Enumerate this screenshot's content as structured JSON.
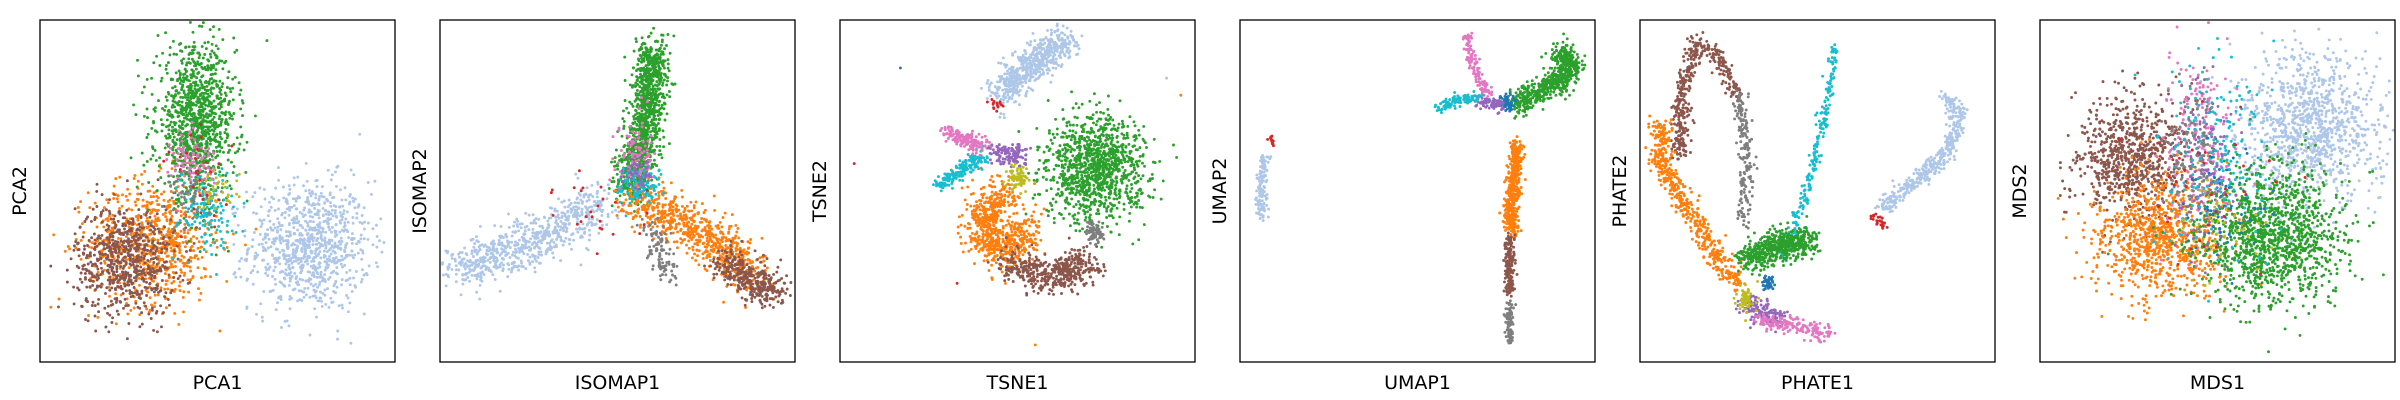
{
  "colors": {
    "light_blue": "#aec7e8",
    "orange": "#ff7f0e",
    "green": "#2ca02c",
    "red": "#d62728",
    "purple": "#9467bd",
    "brown": "#8c564b",
    "pink": "#e377c2",
    "gray": "#7f7f7f",
    "olive": "#bcbd22",
    "cyan": "#17becf",
    "blue": "#1f77b4"
  },
  "chart_data": [
    {
      "type": "scatter",
      "xlabel": "PCA1",
      "ylabel": "PCA2",
      "xlim": [
        0,
        1
      ],
      "ylim": [
        0,
        1
      ],
      "ticks_shown": false,
      "grid": false,
      "clusters": [
        {
          "color": "light_blue",
          "kind": "blob",
          "cx": 0.76,
          "cy": 0.34,
          "sx": 0.085,
          "sy": 0.095,
          "n": 900
        },
        {
          "color": "orange",
          "kind": "blob",
          "cx": 0.32,
          "cy": 0.35,
          "sx": 0.09,
          "sy": 0.09,
          "n": 700
        },
        {
          "color": "brown",
          "kind": "blob",
          "cx": 0.24,
          "cy": 0.3,
          "sx": 0.07,
          "sy": 0.08,
          "n": 700
        },
        {
          "color": "green",
          "kind": "blob",
          "cx": 0.44,
          "cy": 0.7,
          "sx": 0.055,
          "sy": 0.11,
          "n": 1100
        },
        {
          "color": "cyan",
          "kind": "blob",
          "cx": 0.47,
          "cy": 0.45,
          "sx": 0.04,
          "sy": 0.06,
          "n": 150
        },
        {
          "color": "pink",
          "kind": "blob",
          "cx": 0.43,
          "cy": 0.58,
          "sx": 0.03,
          "sy": 0.05,
          "n": 100
        },
        {
          "color": "gray",
          "kind": "blob",
          "cx": 0.42,
          "cy": 0.48,
          "sx": 0.03,
          "sy": 0.05,
          "n": 60
        },
        {
          "color": "olive",
          "kind": "blob",
          "cx": 0.5,
          "cy": 0.5,
          "sx": 0.03,
          "sy": 0.03,
          "n": 40
        },
        {
          "color": "red",
          "kind": "blob",
          "cx": 0.45,
          "cy": 0.52,
          "sx": 0.05,
          "sy": 0.08,
          "n": 30
        }
      ]
    },
    {
      "type": "scatter",
      "xlabel": "ISOMAP1",
      "ylabel": "ISOMAP2",
      "xlim": [
        0,
        1
      ],
      "ylim": [
        0,
        1
      ],
      "ticks_shown": false,
      "grid": false,
      "clusters": [
        {
          "color": "light_blue",
          "kind": "path",
          "points": [
            [
              0.05,
              0.27
            ],
            [
              0.2,
              0.33
            ],
            [
              0.33,
              0.38
            ],
            [
              0.45,
              0.48
            ]
          ],
          "spread": 0.035,
          "n": 700
        },
        {
          "color": "green",
          "kind": "path",
          "points": [
            [
              0.6,
              0.92
            ],
            [
              0.59,
              0.75
            ],
            [
              0.56,
              0.6
            ],
            [
              0.53,
              0.5
            ]
          ],
          "spread": 0.025,
          "n": 1100
        },
        {
          "color": "orange",
          "kind": "path",
          "points": [
            [
              0.55,
              0.48
            ],
            [
              0.67,
              0.42
            ],
            [
              0.8,
              0.33
            ],
            [
              0.88,
              0.25
            ]
          ],
          "spread": 0.035,
          "n": 700
        },
        {
          "color": "brown",
          "kind": "path",
          "points": [
            [
              0.8,
              0.3
            ],
            [
              0.88,
              0.24
            ],
            [
              0.95,
              0.2
            ]
          ],
          "spread": 0.025,
          "n": 350
        },
        {
          "color": "gray",
          "kind": "path",
          "points": [
            [
              0.6,
              0.4
            ],
            [
              0.64,
              0.25
            ]
          ],
          "spread": 0.02,
          "n": 100
        },
        {
          "color": "cyan",
          "kind": "blob",
          "cx": 0.56,
          "cy": 0.52,
          "sx": 0.03,
          "sy": 0.03,
          "n": 120
        },
        {
          "color": "pink",
          "kind": "blob",
          "cx": 0.55,
          "cy": 0.62,
          "sx": 0.025,
          "sy": 0.05,
          "n": 90
        },
        {
          "color": "purple",
          "kind": "blob",
          "cx": 0.55,
          "cy": 0.55,
          "sx": 0.025,
          "sy": 0.025,
          "n": 50
        },
        {
          "color": "red",
          "kind": "blob",
          "cx": 0.45,
          "cy": 0.45,
          "sx": 0.07,
          "sy": 0.06,
          "n": 25
        }
      ]
    },
    {
      "type": "scatter",
      "xlabel": "TSNE1",
      "ylabel": "TSNE2",
      "xlim": [
        0,
        1
      ],
      "ylim": [
        0,
        1
      ],
      "ticks_shown": false,
      "grid": false,
      "clusters": [
        {
          "color": "light_blue",
          "kind": "path",
          "points": [
            [
              0.45,
              0.78
            ],
            [
              0.52,
              0.86
            ],
            [
              0.6,
              0.92
            ],
            [
              0.64,
              0.94
            ]
          ],
          "spread": 0.025,
          "n": 600
        },
        {
          "color": "green",
          "kind": "blob",
          "cx": 0.72,
          "cy": 0.57,
          "sx": 0.07,
          "sy": 0.075,
          "n": 1100
        },
        {
          "color": "orange",
          "kind": "path",
          "points": [
            [
              0.47,
              0.5
            ],
            [
              0.4,
              0.43
            ],
            [
              0.41,
              0.35
            ],
            [
              0.48,
              0.32
            ],
            [
              0.53,
              0.4
            ]
          ],
          "spread": 0.03,
          "n": 650
        },
        {
          "color": "brown",
          "kind": "path",
          "points": [
            [
              0.47,
              0.29
            ],
            [
              0.56,
              0.25
            ],
            [
              0.66,
              0.26
            ],
            [
              0.7,
              0.3
            ]
          ],
          "spread": 0.025,
          "n": 450
        },
        {
          "color": "gray",
          "kind": "path",
          "points": [
            [
              0.72,
              0.36
            ],
            [
              0.71,
              0.4
            ]
          ],
          "spread": 0.012,
          "n": 70
        },
        {
          "color": "cyan",
          "kind": "path",
          "points": [
            [
              0.28,
              0.52
            ],
            [
              0.34,
              0.56
            ],
            [
              0.4,
              0.6
            ]
          ],
          "spread": 0.012,
          "n": 180
        },
        {
          "color": "pink",
          "kind": "path",
          "points": [
            [
              0.3,
              0.67
            ],
            [
              0.37,
              0.64
            ],
            [
              0.42,
              0.63
            ]
          ],
          "spread": 0.012,
          "n": 160
        },
        {
          "color": "purple",
          "kind": "blob",
          "cx": 0.48,
          "cy": 0.61,
          "sx": 0.025,
          "sy": 0.015,
          "n": 120
        },
        {
          "color": "olive",
          "kind": "blob",
          "cx": 0.5,
          "cy": 0.54,
          "sx": 0.015,
          "sy": 0.02,
          "n": 70
        },
        {
          "color": "red",
          "kind": "blob",
          "cx": 0.44,
          "cy": 0.75,
          "sx": 0.01,
          "sy": 0.01,
          "n": 15
        }
      ],
      "outliers": [
        {
          "color": "blue",
          "x": 0.17,
          "y": 0.86
        },
        {
          "color": "red",
          "x": 0.04,
          "y": 0.58
        },
        {
          "color": "orange",
          "x": 0.96,
          "y": 0.78
        },
        {
          "color": "orange",
          "x": 0.55,
          "y": 0.05
        },
        {
          "color": "light_blue",
          "x": 0.92,
          "y": 0.83
        },
        {
          "color": "red",
          "x": 0.33,
          "y": 0.23
        }
      ]
    },
    {
      "type": "scatter",
      "xlabel": "UMAP1",
      "ylabel": "UMAP2",
      "xlim": [
        0,
        1
      ],
      "ylim": [
        0,
        1
      ],
      "ticks_shown": false,
      "grid": false,
      "clusters": [
        {
          "color": "light_blue",
          "kind": "path",
          "points": [
            [
              0.06,
              0.42
            ],
            [
              0.06,
              0.52
            ],
            [
              0.07,
              0.6
            ]
          ],
          "spread": 0.008,
          "n": 130
        },
        {
          "color": "orange",
          "kind": "path",
          "points": [
            [
              0.78,
              0.64
            ],
            [
              0.77,
              0.52
            ],
            [
              0.76,
              0.42
            ],
            [
              0.77,
              0.38
            ]
          ],
          "spread": 0.01,
          "n": 450
        },
        {
          "color": "brown",
          "kind": "path",
          "points": [
            [
              0.76,
              0.37
            ],
            [
              0.76,
              0.27
            ],
            [
              0.76,
              0.2
            ]
          ],
          "spread": 0.007,
          "n": 180
        },
        {
          "color": "gray",
          "kind": "path",
          "points": [
            [
              0.76,
              0.18
            ],
            [
              0.76,
              0.06
            ]
          ],
          "spread": 0.006,
          "n": 90
        },
        {
          "color": "green",
          "kind": "path",
          "points": [
            [
              0.78,
              0.75
            ],
            [
              0.85,
              0.8
            ],
            [
              0.92,
              0.83
            ],
            [
              0.93,
              0.88
            ],
            [
              0.9,
              0.91
            ]
          ],
          "spread": 0.018,
          "n": 600
        },
        {
          "color": "blue",
          "kind": "blob",
          "cx": 0.75,
          "cy": 0.76,
          "sx": 0.012,
          "sy": 0.012,
          "n": 60
        },
        {
          "color": "purple",
          "kind": "path",
          "points": [
            [
              0.66,
              0.77
            ],
            [
              0.74,
              0.75
            ]
          ],
          "spread": 0.01,
          "n": 90
        },
        {
          "color": "pink",
          "kind": "path",
          "points": [
            [
              0.64,
              0.96
            ],
            [
              0.66,
              0.85
            ],
            [
              0.7,
              0.78
            ]
          ],
          "spread": 0.008,
          "n": 120
        },
        {
          "color": "cyan",
          "kind": "path",
          "points": [
            [
              0.56,
              0.74
            ],
            [
              0.62,
              0.77
            ],
            [
              0.67,
              0.77
            ]
          ],
          "spread": 0.008,
          "n": 120
        },
        {
          "color": "red",
          "kind": "blob",
          "cx": 0.09,
          "cy": 0.65,
          "sx": 0.006,
          "sy": 0.006,
          "n": 12
        }
      ]
    },
    {
      "type": "scatter",
      "xlabel": "PHATE1",
      "ylabel": "PHATE2",
      "xlim": [
        0,
        1
      ],
      "ylim": [
        0,
        1
      ],
      "ticks_shown": false,
      "grid": false,
      "clusters": [
        {
          "color": "brown",
          "kind": "path",
          "points": [
            [
              0.11,
              0.6
            ],
            [
              0.12,
              0.8
            ],
            [
              0.16,
              0.93
            ],
            [
              0.22,
              0.9
            ],
            [
              0.27,
              0.78
            ]
          ],
          "spread": 0.012,
          "n": 400
        },
        {
          "color": "gray",
          "kind": "path",
          "points": [
            [
              0.28,
              0.78
            ],
            [
              0.3,
              0.6
            ],
            [
              0.29,
              0.4
            ]
          ],
          "spread": 0.01,
          "n": 180
        },
        {
          "color": "orange",
          "kind": "path",
          "points": [
            [
              0.06,
              0.7
            ],
            [
              0.06,
              0.58
            ],
            [
              0.15,
              0.42
            ],
            [
              0.22,
              0.3
            ],
            [
              0.28,
              0.22
            ]
          ],
          "spread": 0.015,
          "n": 500
        },
        {
          "color": "cyan",
          "kind": "path",
          "points": [
            [
              0.4,
              0.3
            ],
            [
              0.47,
              0.5
            ],
            [
              0.52,
              0.72
            ],
            [
              0.55,
              0.92
            ]
          ],
          "spread": 0.008,
          "n": 230
        },
        {
          "color": "light_blue",
          "kind": "path",
          "points": [
            [
              0.68,
              0.45
            ],
            [
              0.8,
              0.55
            ],
            [
              0.87,
              0.62
            ],
            [
              0.9,
              0.73
            ],
            [
              0.86,
              0.77
            ]
          ],
          "spread": 0.012,
          "n": 400
        },
        {
          "color": "green",
          "kind": "path",
          "points": [
            [
              0.3,
              0.3
            ],
            [
              0.38,
              0.34
            ],
            [
              0.48,
              0.35
            ]
          ],
          "spread": 0.022,
          "n": 550
        },
        {
          "color": "purple",
          "kind": "path",
          "points": [
            [
              0.3,
              0.17
            ],
            [
              0.4,
              0.12
            ]
          ],
          "spread": 0.018,
          "n": 130
        },
        {
          "color": "pink",
          "kind": "path",
          "points": [
            [
              0.34,
              0.12
            ],
            [
              0.45,
              0.1
            ],
            [
              0.53,
              0.08
            ]
          ],
          "spread": 0.012,
          "n": 180
        },
        {
          "color": "olive",
          "kind": "blob",
          "cx": 0.3,
          "cy": 0.18,
          "sx": 0.015,
          "sy": 0.02,
          "n": 70
        },
        {
          "color": "blue",
          "kind": "blob",
          "cx": 0.36,
          "cy": 0.23,
          "sx": 0.01,
          "sy": 0.01,
          "n": 40
        },
        {
          "color": "red",
          "kind": "path",
          "points": [
            [
              0.65,
              0.43
            ],
            [
              0.69,
              0.4
            ]
          ],
          "spread": 0.008,
          "n": 25
        }
      ]
    },
    {
      "type": "scatter",
      "xlabel": "MDS1",
      "ylabel": "MDS2",
      "xlim": [
        0,
        1
      ],
      "ylim": [
        0,
        1
      ],
      "ticks_shown": false,
      "grid": false,
      "clusters": [
        {
          "color": "light_blue",
          "kind": "blob",
          "cx": 0.76,
          "cy": 0.68,
          "sx": 0.1,
          "sy": 0.11,
          "n": 1100
        },
        {
          "color": "brown",
          "kind": "blob",
          "cx": 0.26,
          "cy": 0.6,
          "sx": 0.075,
          "sy": 0.09,
          "n": 800
        },
        {
          "color": "orange",
          "kind": "blob",
          "cx": 0.34,
          "cy": 0.37,
          "sx": 0.09,
          "sy": 0.09,
          "n": 900
        },
        {
          "color": "green",
          "kind": "blob",
          "cx": 0.65,
          "cy": 0.37,
          "sx": 0.1,
          "sy": 0.1,
          "n": 1300
        },
        {
          "color": "pink",
          "kind": "blob",
          "cx": 0.45,
          "cy": 0.65,
          "sx": 0.05,
          "sy": 0.12,
          "n": 200
        },
        {
          "color": "purple",
          "kind": "blob",
          "cx": 0.47,
          "cy": 0.55,
          "sx": 0.04,
          "sy": 0.12,
          "n": 150
        },
        {
          "color": "cyan",
          "kind": "blob",
          "cx": 0.5,
          "cy": 0.6,
          "sx": 0.07,
          "sy": 0.14,
          "n": 200
        },
        {
          "color": "gray",
          "kind": "blob",
          "cx": 0.43,
          "cy": 0.6,
          "sx": 0.04,
          "sy": 0.1,
          "n": 120
        },
        {
          "color": "olive",
          "kind": "blob",
          "cx": 0.5,
          "cy": 0.4,
          "sx": 0.06,
          "sy": 0.08,
          "n": 60
        },
        {
          "color": "blue",
          "kind": "blob",
          "cx": 0.52,
          "cy": 0.45,
          "sx": 0.06,
          "sy": 0.1,
          "n": 60
        },
        {
          "color": "red",
          "kind": "blob",
          "cx": 0.5,
          "cy": 0.5,
          "sx": 0.1,
          "sy": 0.15,
          "n": 40
        }
      ]
    }
  ]
}
